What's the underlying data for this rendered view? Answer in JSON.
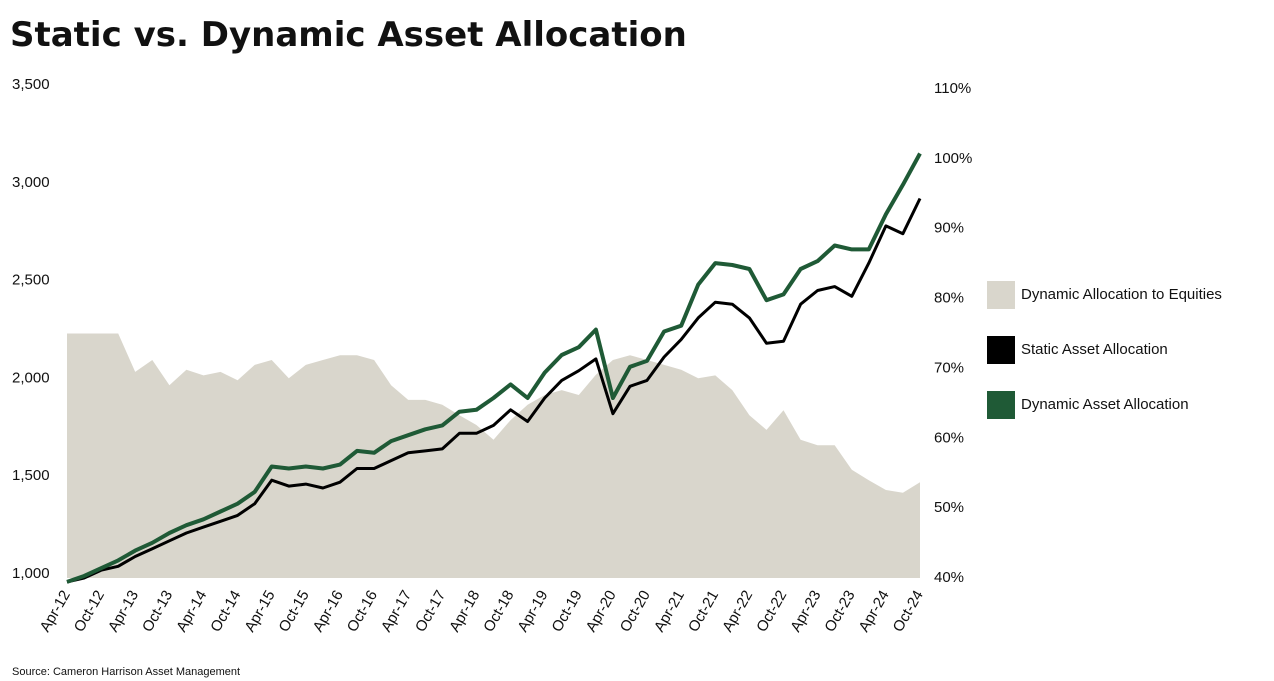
{
  "chart_data": {
    "type": "line",
    "title": "Static vs. Dynamic Asset Allocation",
    "source": "Source: Cameron Harrison Asset Management",
    "categories": [
      "Apr-12",
      null,
      "Oct-12",
      null,
      "Apr-13",
      null,
      "Oct-13",
      null,
      "Apr-14",
      null,
      "Oct-14",
      null,
      "Apr-15",
      null,
      "Oct-15",
      null,
      "Apr-16",
      null,
      "Oct-16",
      null,
      "Apr-17",
      null,
      "Oct-17",
      null,
      "Apr-18",
      null,
      "Oct-18",
      null,
      "Apr-19",
      null,
      "Oct-19",
      null,
      "Apr-20",
      null,
      "Oct-20",
      null,
      "Apr-21",
      null,
      "Oct-21",
      null,
      "Apr-22",
      null,
      "Oct-22",
      null,
      "Apr-23",
      null,
      "Oct-23",
      null,
      "Apr-24",
      null,
      "Oct-24"
    ],
    "series": [
      {
        "name": "Dynamic Allocation to Equities",
        "type": "area",
        "axis": "y2",
        "color": "#d9d6cc",
        "values": [
          75,
          75,
          75,
          75,
          69.5,
          71.2,
          67.6,
          69.8,
          69,
          69.5,
          68.3,
          70.5,
          71.2,
          68.6,
          70.5,
          71.2,
          71.9,
          71.9,
          71.2,
          67.6,
          65.5,
          65.5,
          64.8,
          63.3,
          61.9,
          59.8,
          62.6,
          64.8,
          66.2,
          66.9,
          66.2,
          69.1,
          71.2,
          71.9,
          71.2,
          70.5,
          69.8,
          68.6,
          69,
          66.9,
          63.3,
          61.2,
          64,
          59.8,
          59,
          59,
          55.5,
          54,
          52.6,
          52.2,
          53.7
        ]
      },
      {
        "name": "Static Asset Allocation",
        "type": "line",
        "color": "#000000",
        "values": [
          980,
          1000,
          1040,
          1060,
          1110,
          1150,
          1190,
          1230,
          1260,
          1290,
          1320,
          1380,
          1500,
          1470,
          1480,
          1460,
          1490,
          1560,
          1560,
          1600,
          1640,
          1650,
          1660,
          1740,
          1740,
          1780,
          1860,
          1800,
          1920,
          2010,
          2060,
          2120,
          1840,
          1980,
          2010,
          2130,
          2220,
          2330,
          2410,
          2400,
          2330,
          2200,
          2210,
          2400,
          2470,
          2490,
          2440,
          2610,
          2800,
          2760,
          2940
        ]
      },
      {
        "name": "Dynamic Asset Allocation",
        "type": "line",
        "color": "#1f5a36",
        "values": [
          980,
          1010,
          1050,
          1090,
          1140,
          1180,
          1230,
          1270,
          1300,
          1340,
          1380,
          1440,
          1570,
          1560,
          1570,
          1560,
          1580,
          1650,
          1640,
          1700,
          1730,
          1760,
          1780,
          1850,
          1860,
          1920,
          1990,
          1920,
          2050,
          2140,
          2180,
          2270,
          1920,
          2080,
          2110,
          2260,
          2290,
          2500,
          2610,
          2600,
          2580,
          2420,
          2450,
          2580,
          2620,
          2700,
          2680,
          2680,
          2860,
          3010,
          3170
        ]
      }
    ],
    "ylim": [
      1000,
      3500
    ],
    "yticks": [
      {
        "value": 1000,
        "label": "1,000"
      },
      {
        "value": 1500,
        "label": "1,500"
      },
      {
        "value": 2000,
        "label": "2,000"
      },
      {
        "value": 2500,
        "label": "2,500"
      },
      {
        "value": 3000,
        "label": "3,000"
      },
      {
        "value": 3500,
        "label": "3,500"
      }
    ],
    "y2lim": [
      40,
      110
    ],
    "y2ticks": [
      {
        "value": 40,
        "label": "40%"
      },
      {
        "value": 50,
        "label": "50%"
      },
      {
        "value": 60,
        "label": "60%"
      },
      {
        "value": 70,
        "label": "70%"
      },
      {
        "value": 80,
        "label": "80%"
      },
      {
        "value": 90,
        "label": "90%"
      },
      {
        "value": 100,
        "label": "100%"
      },
      {
        "value": 110,
        "label": "110%"
      }
    ],
    "legend": "right"
  }
}
